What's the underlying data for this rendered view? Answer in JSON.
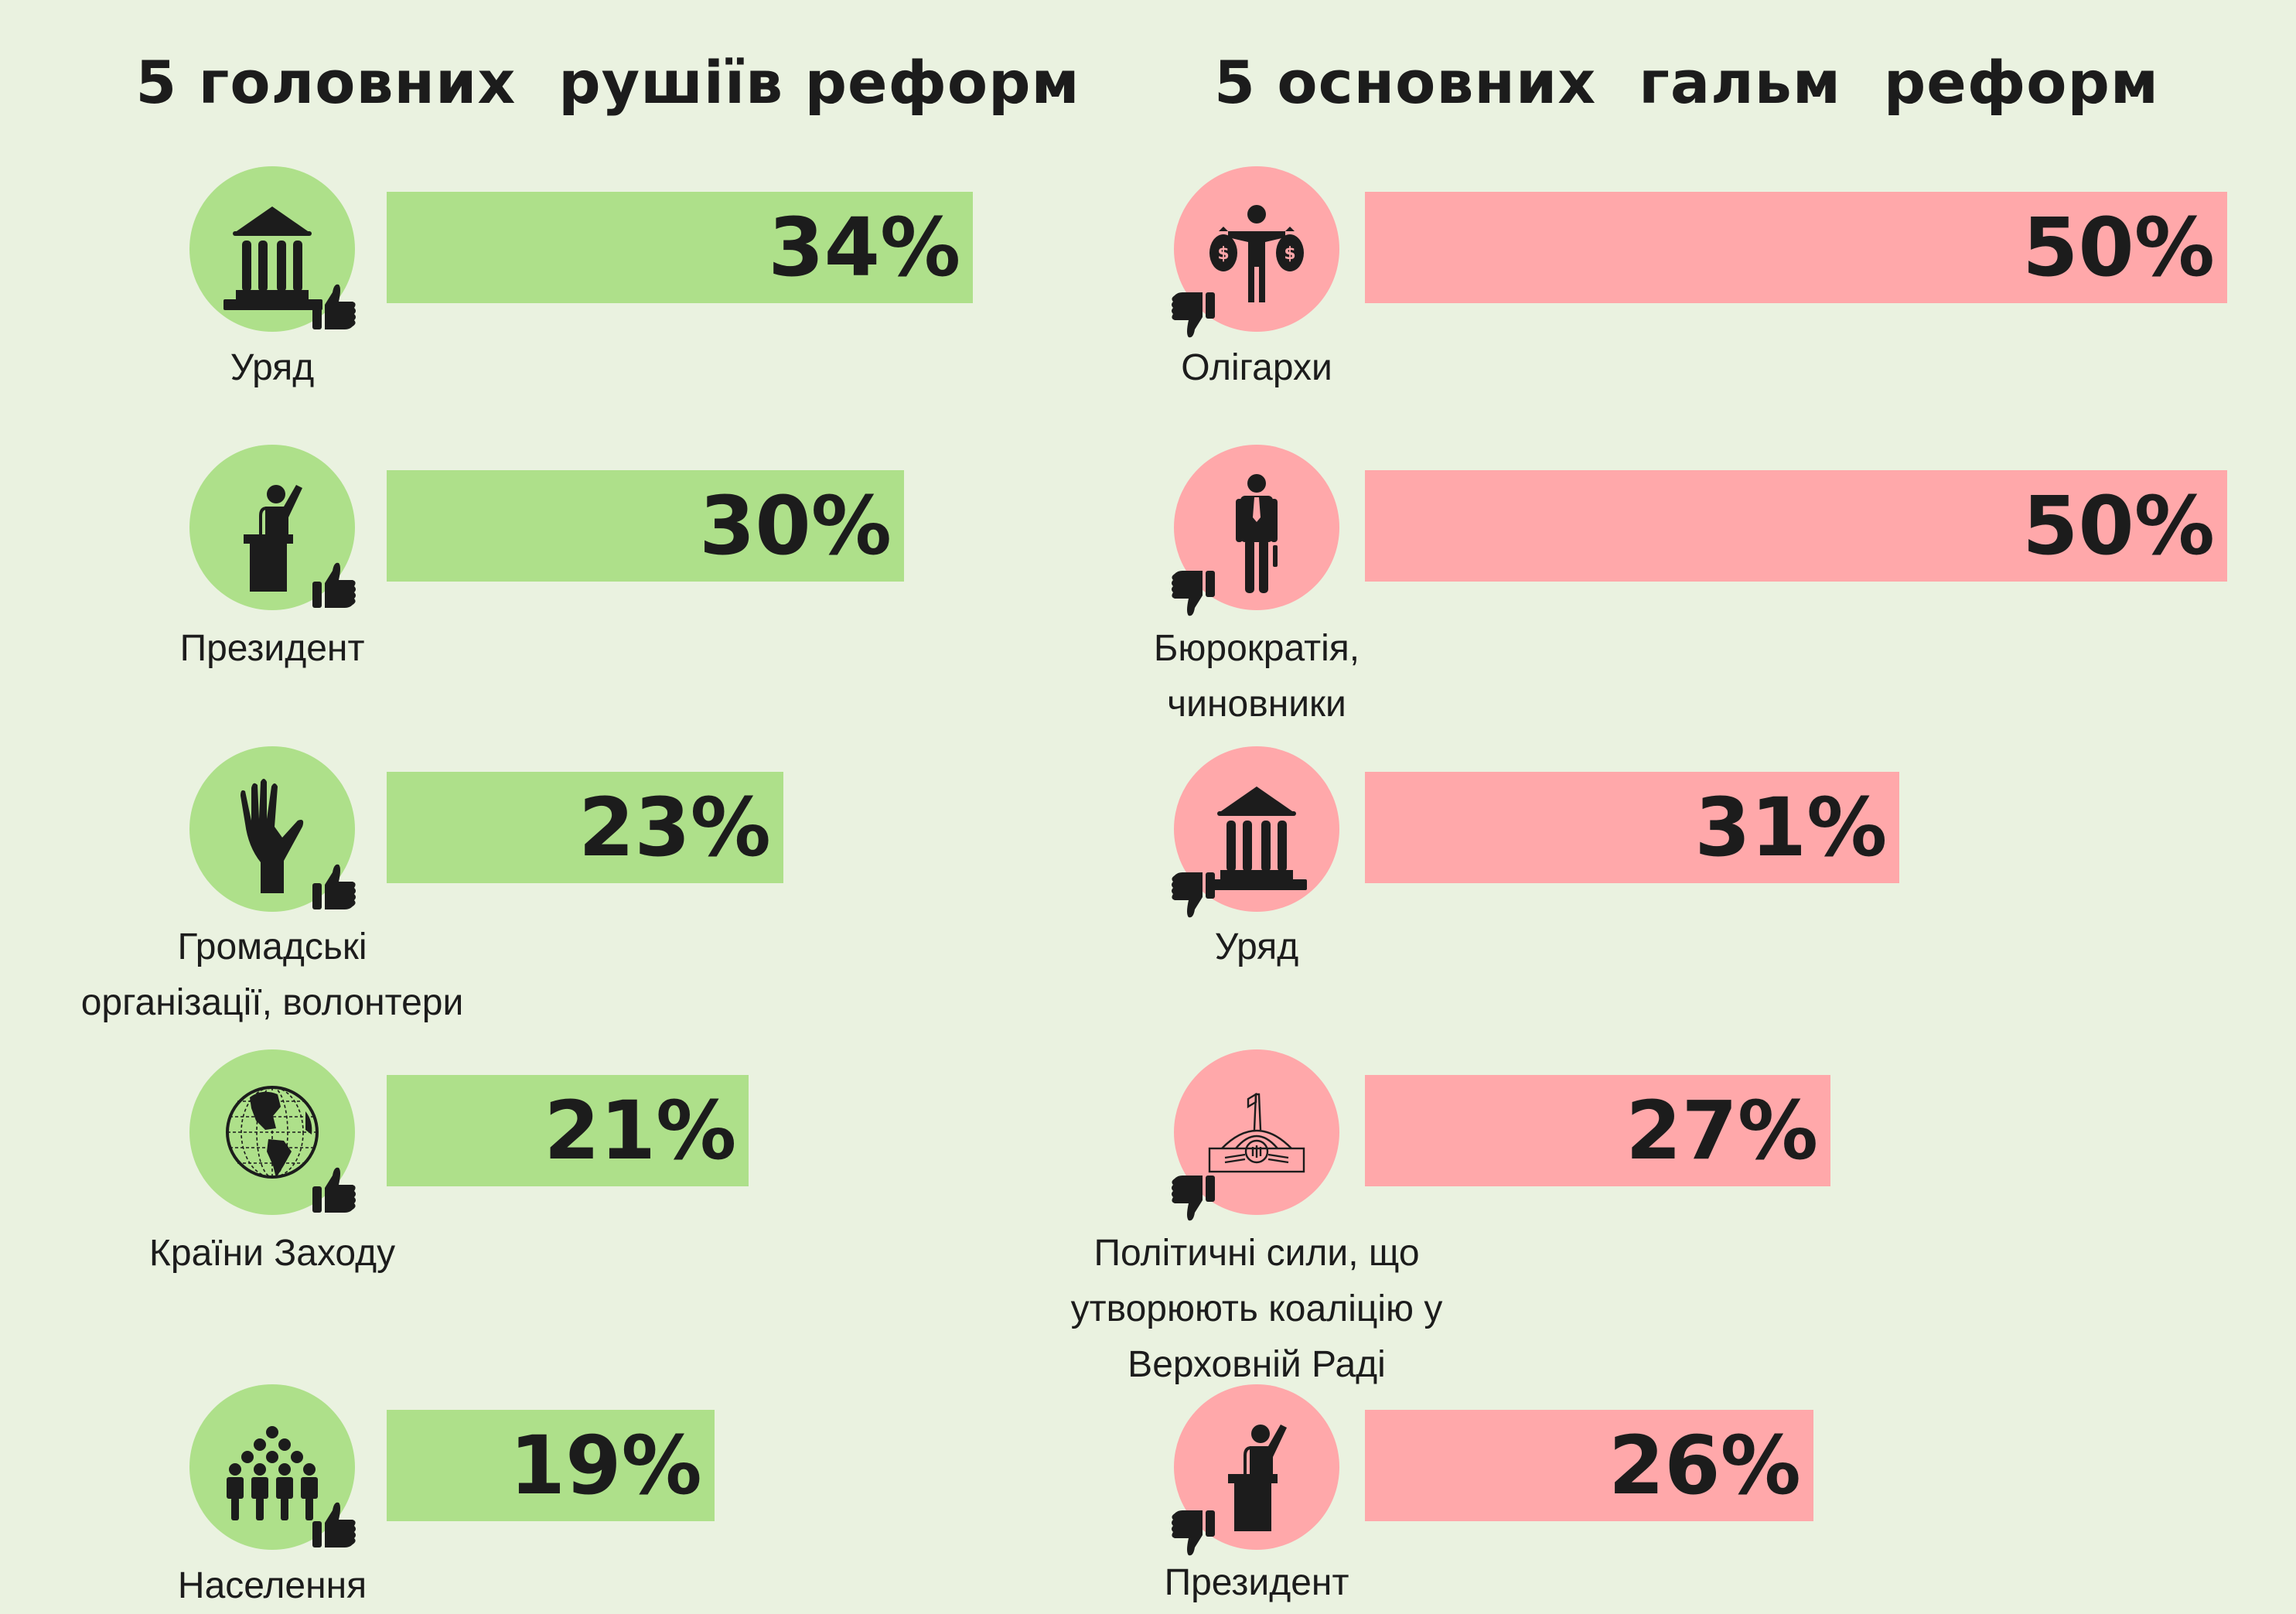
{
  "colors": {
    "background": "#EAF2E0",
    "drivers": "#AEE08A",
    "brakes": "#FFA8AA",
    "text": "#1C1C1C"
  },
  "chart_data": [
    {
      "type": "bar",
      "orientation": "horizontal",
      "title": "5 головних  рушіїв реформ",
      "categories": [
        "Уряд",
        "Президент",
        "Громадські організації, волонтери",
        "Країни Заходу",
        "Населення"
      ],
      "category_lines": [
        [
          "Уряд"
        ],
        [
          "Президент"
        ],
        [
          "Громадські",
          "організації, волонтери"
        ],
        [
          "Країни Заходу"
        ],
        [
          "Населення"
        ]
      ],
      "icons": [
        "government-building-icon",
        "president-podium-icon",
        "raised-hand-icon",
        "globe-icon",
        "crowd-icon"
      ],
      "badge_icon": "thumbs-up-icon",
      "values": [
        34,
        30,
        23,
        21,
        19
      ],
      "value_labels": [
        "34%",
        "30%",
        "23%",
        "21%",
        "19%"
      ],
      "unit": "%",
      "xlim": [
        0,
        50
      ],
      "grid": false,
      "color": "#AEE08A"
    },
    {
      "type": "bar",
      "orientation": "horizontal",
      "title": "5 основних  гальм  реформ",
      "categories": [
        "Олігархи",
        "Бюрократія, чиновники",
        "Уряд",
        "Політичні сили, що утворюють коаліцію у Верховній Раді",
        "Президент"
      ],
      "category_lines": [
        [
          "Олігархи"
        ],
        [
          "Бюрократія,",
          "чиновники"
        ],
        [
          "Уряд"
        ],
        [
          "Політичні сили, що",
          "утворюють коаліцію у",
          "Верховній Раді"
        ],
        [
          "Президент"
        ]
      ],
      "icons": [
        "oligarch-money-bags-icon",
        "bureaucrat-icon",
        "government-building-icon",
        "parliament-building-icon",
        "president-podium-icon"
      ],
      "badge_icon": "thumbs-down-icon",
      "values": [
        50,
        50,
        31,
        27,
        26
      ],
      "value_labels": [
        "50%",
        "50%",
        "31%",
        "27%",
        "26%"
      ],
      "unit": "%",
      "xlim": [
        0,
        50
      ],
      "grid": false,
      "color": "#FFA8AA"
    }
  ]
}
